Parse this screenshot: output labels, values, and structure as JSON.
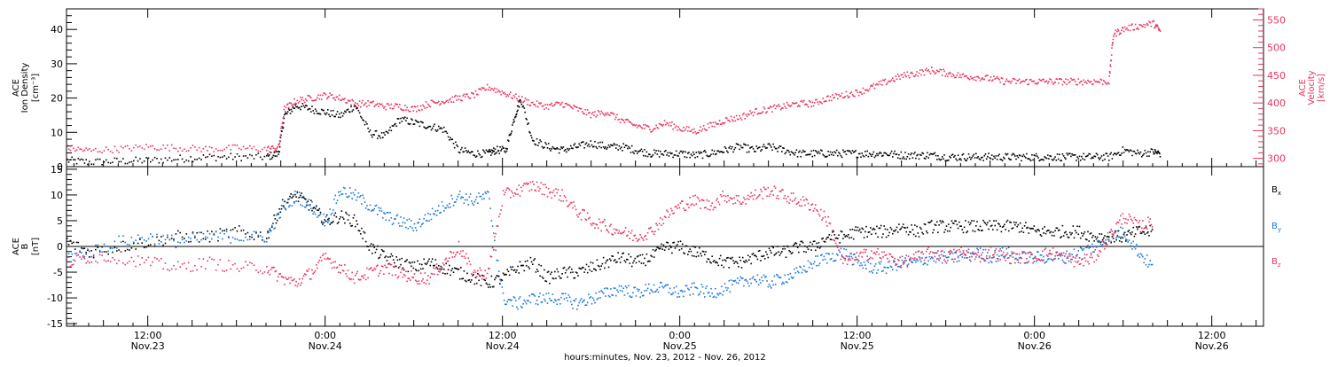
{
  "colors": {
    "black": "#000000",
    "red": "#e8345f",
    "blue": "#1a78d8"
  },
  "x_axis": {
    "title": "hours:minutes, Nov. 23, 2012 - Nov. 26, 2012",
    "ticks": [
      {
        "hours": 12,
        "time": "12:00",
        "date": "Nov.23"
      },
      {
        "hours": 24,
        "time": "0:00",
        "date": "Nov.24"
      },
      {
        "hours": 36,
        "time": "12:00",
        "date": "Nov.24"
      },
      {
        "hours": 48,
        "time": "0:00",
        "date": "Nov.25"
      },
      {
        "hours": 60,
        "time": "12:00",
        "date": "Nov.25"
      },
      {
        "hours": 72,
        "time": "0:00",
        "date": "Nov.26"
      },
      {
        "hours": 84,
        "time": "12:00",
        "date": "Nov.26"
      }
    ]
  },
  "chart_data": [
    {
      "type": "scatter",
      "panel": "top",
      "ylabel_left": [
        "ACE",
        "Ion Density",
        "[cm⁻³]"
      ],
      "ylabel_right": [
        "ACE",
        "Velocity",
        "[km/s]"
      ],
      "ylim_left": [
        0,
        46
      ],
      "ylim_right": [
        285,
        570
      ],
      "yticks_left": [
        0,
        10,
        20,
        30,
        40
      ],
      "yticks_right": [
        300,
        350,
        400,
        450,
        500,
        550
      ],
      "xlim_hours": [
        6.5,
        87.5
      ],
      "series": [
        {
          "axis": "left",
          "color": "#000000",
          "x": [
            6.5,
            8,
            10,
            12,
            14,
            16,
            18,
            20,
            20.8,
            21.2,
            22,
            23,
            24,
            25,
            26,
            27,
            28,
            29,
            30,
            31,
            32,
            33,
            34,
            35,
            35.5,
            36.2,
            36.8,
            37.2,
            38,
            39,
            40,
            41,
            42,
            43,
            44,
            45,
            46,
            47,
            48,
            49,
            50,
            51,
            52,
            53,
            54,
            55,
            56,
            57,
            58,
            59,
            60,
            61,
            62,
            63,
            64,
            65,
            66,
            67,
            68,
            69,
            70,
            71,
            72,
            73,
            74,
            75,
            76,
            77,
            78,
            79,
            80,
            80.5
          ],
          "y": [
            2,
            1.5,
            1.8,
            2,
            2.5,
            3,
            3,
            3,
            4,
            15,
            18,
            17,
            16,
            15,
            18,
            10,
            9,
            14,
            13,
            12,
            11,
            5,
            4,
            4,
            5,
            5,
            15,
            20,
            8,
            6,
            5,
            6,
            7,
            6,
            6,
            5,
            4,
            4,
            4,
            3.5,
            4,
            5,
            6,
            5,
            6,
            5,
            4,
            4,
            4,
            4,
            4,
            4,
            4,
            3.5,
            3.5,
            3.5,
            3,
            3,
            3,
            3,
            3,
            3,
            3,
            3,
            3,
            3,
            3,
            3,
            5,
            4,
            4.5,
            4
          ]
        },
        {
          "axis": "right",
          "color": "#e8345f",
          "x": [
            6.5,
            8,
            10,
            12,
            14,
            16,
            18,
            20,
            20.8,
            21.2,
            22,
            23,
            24,
            25,
            26,
            27,
            28,
            29,
            30,
            31,
            32,
            33,
            34,
            35,
            36,
            37,
            38,
            39,
            40,
            41,
            42,
            43,
            44,
            45,
            46,
            47,
            48,
            49,
            50,
            51,
            52,
            53,
            54,
            55,
            56,
            57,
            58,
            59,
            60,
            61,
            62,
            63,
            64,
            65,
            66,
            67,
            68,
            69,
            70,
            71,
            72,
            73,
            74,
            75,
            76,
            77,
            77.3,
            78,
            79,
            80,
            80.5
          ],
          "y": [
            320,
            315,
            318,
            322,
            320,
            318,
            320,
            318,
            320,
            390,
            405,
            410,
            415,
            410,
            400,
            400,
            395,
            395,
            390,
            400,
            405,
            410,
            415,
            430,
            420,
            410,
            400,
            395,
            400,
            390,
            380,
            385,
            370,
            360,
            355,
            365,
            355,
            350,
            360,
            370,
            375,
            385,
            390,
            395,
            400,
            400,
            410,
            415,
            420,
            430,
            440,
            450,
            455,
            460,
            455,
            450,
            448,
            445,
            440,
            440,
            440,
            440,
            440,
            440,
            440,
            440,
            525,
            535,
            540,
            545,
            530
          ]
        }
      ]
    },
    {
      "type": "scatter",
      "panel": "bottom",
      "ylabel_left": [
        "ACE",
        "B",
        "[nT]"
      ],
      "legend": [
        "Bx",
        "By",
        "Bz"
      ],
      "legend_position": "right",
      "ylim": [
        -15.5,
        15.5
      ],
      "yticks": [
        -15,
        -10,
        -5,
        0,
        5,
        10,
        15
      ],
      "zero_line": true,
      "xlim_hours": [
        6.5,
        87.5
      ],
      "series": [
        {
          "name": "Bx",
          "color": "#000000",
          "x": [
            6.5,
            8,
            10,
            12,
            14,
            16,
            18,
            20,
            21,
            22,
            23,
            24,
            25,
            26,
            27,
            28,
            29,
            30,
            31,
            32,
            33,
            34,
            35,
            36,
            37,
            38,
            39,
            40,
            41,
            42,
            43,
            44,
            45,
            46,
            47,
            48,
            49,
            50,
            51,
            52,
            53,
            54,
            55,
            56,
            57,
            58,
            59,
            60,
            61,
            62,
            63,
            64,
            65,
            66,
            67,
            68,
            69,
            70,
            71,
            72,
            73,
            74,
            75,
            76,
            77,
            78,
            79,
            80
          ],
          "y": [
            1,
            -1,
            0,
            1,
            2,
            2,
            3,
            2,
            8,
            10,
            8,
            5,
            6,
            5,
            0,
            -2,
            -3,
            -4,
            -3,
            -4,
            -5,
            -6,
            -7,
            -6,
            -4,
            -3,
            -6,
            -5,
            -5,
            -4,
            -3,
            -2,
            -3,
            -2,
            0,
            0,
            -1,
            -2,
            -3,
            -3,
            -2,
            -1,
            -1,
            0,
            0,
            2,
            2,
            3,
            3,
            3,
            4,
            3,
            4,
            4,
            4,
            4,
            4,
            4,
            4,
            3,
            3,
            3,
            3,
            2,
            2,
            2,
            3,
            3
          ]
        },
        {
          "name": "By",
          "color": "#1a78d8",
          "x": [
            6.5,
            8,
            10,
            12,
            14,
            16,
            18,
            20,
            21,
            22,
            23,
            24,
            25,
            26,
            27,
            28,
            29,
            30,
            31,
            32,
            33,
            34,
            35,
            36,
            37,
            38,
            39,
            40,
            41,
            42,
            43,
            44,
            45,
            46,
            47,
            48,
            49,
            50,
            51,
            52,
            53,
            54,
            55,
            56,
            57,
            58,
            59,
            60,
            61,
            62,
            63,
            64,
            65,
            66,
            67,
            68,
            69,
            70,
            71,
            72,
            73,
            74,
            75,
            76,
            77,
            78,
            79,
            80
          ],
          "y": [
            -2,
            -1,
            1,
            2,
            1,
            2,
            2,
            2,
            7,
            10,
            8,
            5,
            11,
            10,
            8,
            6,
            5,
            4,
            6,
            8,
            10,
            9,
            10,
            -10,
            -11,
            -10,
            -10,
            -10,
            -11,
            -10,
            -9,
            -8,
            -9,
            -8,
            -8,
            -9,
            -8,
            -9,
            -8,
            -7,
            -6,
            -7,
            -6,
            -5,
            -3,
            -2,
            -1,
            -3,
            -4,
            -4,
            -3,
            -3,
            -2,
            -2,
            -2,
            -1,
            -2,
            -1,
            -2,
            -2,
            -2,
            -2,
            -1,
            0,
            2,
            3,
            -1,
            -4
          ]
        },
        {
          "name": "Bz",
          "color": "#e8345f",
          "x": [
            6.5,
            8,
            10,
            12,
            14,
            16,
            18,
            20,
            21,
            22,
            23,
            24,
            25,
            26,
            27,
            28,
            29,
            30,
            31,
            32,
            33,
            34,
            35,
            36,
            37,
            38,
            39,
            40,
            41,
            42,
            43,
            44,
            45,
            46,
            47,
            48,
            49,
            50,
            51,
            52,
            53,
            54,
            55,
            56,
            57,
            58,
            59,
            60,
            61,
            62,
            63,
            64,
            65,
            66,
            67,
            68,
            69,
            70,
            71,
            72,
            73,
            74,
            75,
            76,
            77,
            78,
            79,
            80
          ],
          "y": [
            -3,
            -2,
            -2,
            -3,
            -4,
            -3,
            -4,
            -4,
            -6,
            -7,
            -5,
            -2,
            -4,
            -6,
            -5,
            -4,
            -5,
            -6,
            -6,
            -3,
            0,
            -5,
            -5,
            10,
            11,
            12,
            11,
            10,
            7,
            5,
            4,
            3,
            2,
            3,
            6,
            8,
            9,
            8,
            10,
            9,
            10,
            11,
            10,
            9,
            8,
            5,
            -3,
            -2,
            -1,
            -2,
            -3,
            -2,
            -1,
            -2,
            -1,
            -2,
            -1,
            -2,
            -2,
            -2,
            -1,
            -2,
            -3,
            -2,
            2,
            6,
            4,
            5
          ]
        }
      ]
    }
  ]
}
